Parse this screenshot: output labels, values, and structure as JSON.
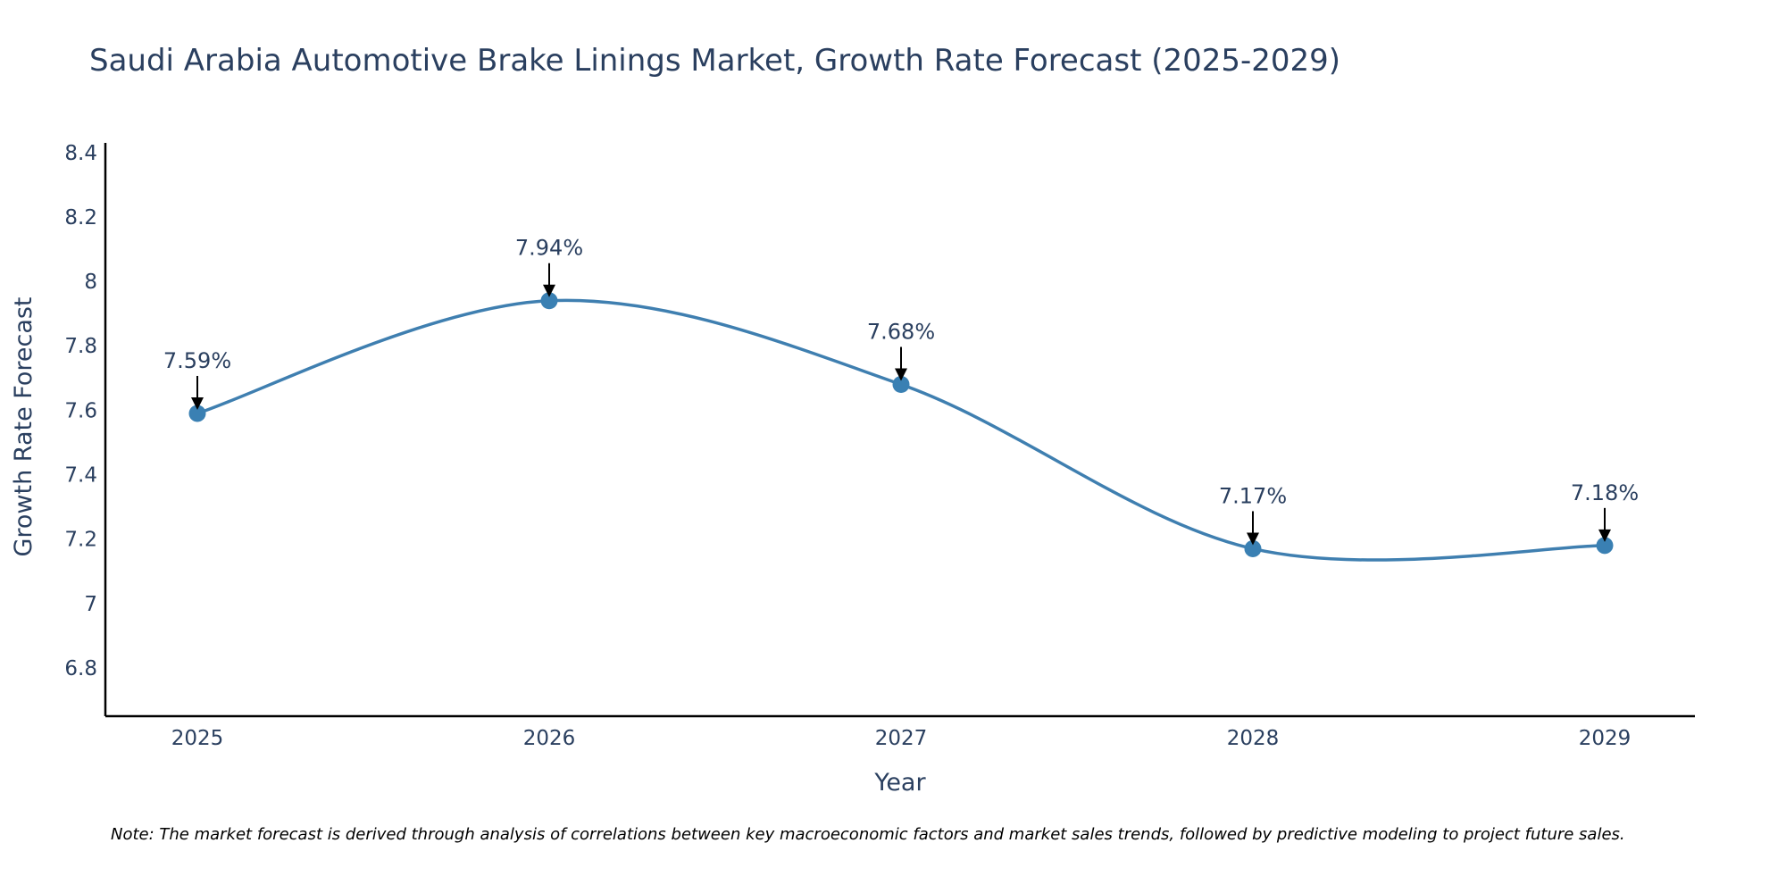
{
  "chart_data": {
    "type": "line",
    "title": "Saudi Arabia Automotive Brake Linings Market, Growth Rate Forecast (2025-2029)",
    "xlabel": "Year",
    "ylabel": "Growth Rate Forecast",
    "categories": [
      "2025",
      "2026",
      "2027",
      "2028",
      "2029"
    ],
    "values": [
      7.59,
      7.94,
      7.68,
      7.17,
      7.18
    ],
    "data_labels": [
      "7.59%",
      "7.94%",
      "7.68%",
      "7.17%",
      "7.18%"
    ],
    "yticks": [
      6.8,
      7,
      7.2,
      7.4,
      7.6,
      7.8,
      8,
      8.2,
      8.4
    ],
    "ytick_labels": [
      "6.8",
      "7",
      "7.2",
      "7.4",
      "7.6",
      "7.8",
      "8",
      "8.2",
      "8.4"
    ],
    "ylim": [
      6.65,
      8.43
    ],
    "grid": false,
    "line_shape": "spline",
    "colors": {
      "line": "#3f7fb0",
      "marker": "#3a80b3",
      "arrow": "#000000",
      "text": "#2a3f5f",
      "axis": "#000000"
    }
  },
  "note": "Note: The market forecast is derived through analysis of correlations between key macroeconomic factors and market sales trends, followed by predictive modeling to project future sales."
}
